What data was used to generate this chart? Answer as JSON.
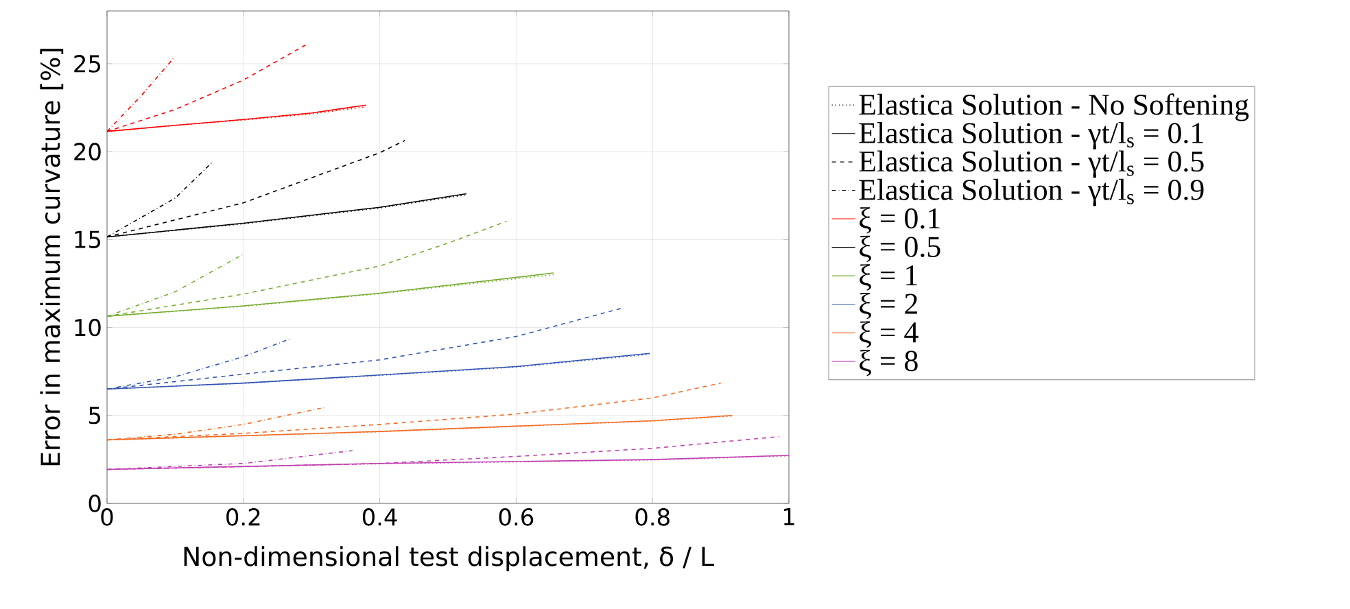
{
  "chart_data": {
    "type": "line",
    "xlabel": "Non-dimensional test displacement, δ / L",
    "ylabel": "Error in maximum curvature [%]",
    "xlim": [
      0,
      1
    ],
    "ylim": [
      0,
      28
    ],
    "xticks": [
      0,
      0.2,
      0.4,
      0.6,
      0.8,
      1
    ],
    "yticks": [
      0,
      5,
      10,
      15,
      20,
      25
    ],
    "grid": true,
    "legend": "right",
    "series": [
      {
        "color": "#ff0000",
        "line_style": "dotted",
        "x": [
          0,
          0.1,
          0.2,
          0.3,
          0.38
        ],
        "values": [
          21.15,
          21.5,
          21.8,
          22.15,
          22.55
        ]
      },
      {
        "color": "#ff0000",
        "line_style": "solid",
        "x": [
          0,
          0.1,
          0.2,
          0.3,
          0.38
        ],
        "values": [
          21.15,
          21.5,
          21.83,
          22.2,
          22.65
        ]
      },
      {
        "color": "#ff0000",
        "line_style": "dashed",
        "x": [
          0,
          0.1,
          0.2,
          0.291
        ],
        "values": [
          21.15,
          22.4,
          24.07,
          26.06
        ]
      },
      {
        "color": "#ff0000",
        "line_style": "dashdot",
        "x": [
          0,
          0.05,
          0.097
        ],
        "values": [
          21.15,
          23.17,
          25.29
        ]
      },
      {
        "color": "#000000",
        "line_style": "dotted",
        "x": [
          0,
          0.2,
          0.4,
          0.527
        ],
        "values": [
          15.15,
          15.9,
          16.8,
          17.55
        ]
      },
      {
        "color": "#000000",
        "line_style": "solid",
        "x": [
          0,
          0.2,
          0.4,
          0.527
        ],
        "values": [
          15.15,
          15.93,
          16.84,
          17.61
        ]
      },
      {
        "color": "#000000",
        "line_style": "dashed",
        "x": [
          0,
          0.2,
          0.4,
          0.437
        ],
        "values": [
          15.15,
          17.09,
          19.94,
          20.64
        ]
      },
      {
        "color": "#000000",
        "line_style": "dashdot",
        "x": [
          0,
          0.1,
          0.155
        ],
        "values": [
          15.15,
          17.36,
          19.42
        ]
      },
      {
        "color": "#77ac30",
        "line_style": "dotted",
        "x": [
          0,
          0.2,
          0.4,
          0.655
        ],
        "values": [
          10.64,
          11.2,
          11.92,
          13.0
        ]
      },
      {
        "color": "#77ac30",
        "line_style": "solid",
        "x": [
          0,
          0.2,
          0.4,
          0.655
        ],
        "values": [
          10.64,
          11.23,
          11.95,
          13.1
        ]
      },
      {
        "color": "#77ac30",
        "line_style": "dashed",
        "x": [
          0,
          0.2,
          0.4,
          0.5,
          0.586
        ],
        "values": [
          10.64,
          11.9,
          13.5,
          14.8,
          16.04
        ]
      },
      {
        "color": "#77ac30",
        "line_style": "dashdot",
        "x": [
          0,
          0.1,
          0.2
        ],
        "values": [
          10.64,
          12.03,
          14.17
        ]
      },
      {
        "color": "#3355b0",
        "line_style": "dotted",
        "x": [
          0,
          0.2,
          0.4,
          0.6,
          0.796
        ],
        "values": [
          6.5,
          6.83,
          7.28,
          7.75,
          8.48
        ]
      },
      {
        "color": "#3355b0",
        "line_style": "solid",
        "x": [
          0,
          0.2,
          0.4,
          0.6,
          0.796
        ],
        "values": [
          6.5,
          6.84,
          7.3,
          7.78,
          8.53
        ]
      },
      {
        "color": "#3355b0",
        "line_style": "dashed",
        "x": [
          0,
          0.2,
          0.4,
          0.6,
          0.755
        ],
        "values": [
          6.5,
          7.35,
          8.16,
          9.49,
          11.1
        ]
      },
      {
        "color": "#3355b0",
        "line_style": "dashdot",
        "x": [
          0,
          0.1,
          0.2,
          0.269
        ],
        "values": [
          6.5,
          7.2,
          8.34,
          9.36
        ]
      },
      {
        "color": "#f26b21",
        "line_style": "dotted",
        "x": [
          0,
          0.4,
          0.8,
          0.917
        ],
        "values": [
          3.61,
          4.07,
          4.68,
          4.97
        ]
      },
      {
        "color": "#f26b21",
        "line_style": "solid",
        "x": [
          0,
          0.4,
          0.8,
          0.917
        ],
        "values": [
          3.61,
          4.09,
          4.7,
          5.0
        ]
      },
      {
        "color": "#f26b21",
        "line_style": "dashed",
        "x": [
          0,
          0.2,
          0.4,
          0.6,
          0.8,
          0.9
        ],
        "values": [
          3.61,
          3.98,
          4.49,
          5.08,
          6.0,
          6.84
        ]
      },
      {
        "color": "#f26b21",
        "line_style": "dashdot",
        "x": [
          0,
          0.1,
          0.2,
          0.322
        ],
        "values": [
          3.61,
          3.93,
          4.49,
          5.48
        ]
      },
      {
        "color": "#c040b0",
        "line_style": "dotted",
        "x": [
          0,
          0.4,
          0.8,
          1
        ],
        "values": [
          1.93,
          2.25,
          2.47,
          2.7
        ]
      },
      {
        "color": "#c040b0",
        "line_style": "solid",
        "x": [
          0,
          0.4,
          0.8,
          1
        ],
        "values": [
          1.93,
          2.27,
          2.49,
          2.73
        ]
      },
      {
        "color": "#c040b0",
        "line_style": "dashed",
        "x": [
          0,
          0.2,
          0.4,
          0.6,
          0.8,
          0.986
        ],
        "values": [
          1.93,
          2.09,
          2.27,
          2.67,
          3.13,
          3.8
        ]
      },
      {
        "color": "#c040b0",
        "line_style": "dashdot",
        "x": [
          0,
          0.2,
          0.36
        ],
        "values": [
          1.93,
          2.27,
          3.0
        ]
      },
      {
        "name": "Elastica Solution - No Softening",
        "color": "#000000",
        "line_style": "dotted"
      },
      {
        "name": "Elastica Solution - γt/l$_{s}$ = 0.1",
        "color": "#000000",
        "line_style": "solid"
      },
      {
        "name": "Elastica Solution - γt/l$_{s}$ = 0.5",
        "color": "#000000",
        "line_style": "dashed"
      },
      {
        "name": "Elastica Solution - γt/l$_{s}$ = 0.9",
        "color": "#000000",
        "line_style": "dashdot"
      },
      {
        "name": "ξ = 0.1",
        "color": "#ff0000",
        "line_style": "solid"
      },
      {
        "name": "ξ = 0.5",
        "color": "#000000",
        "line_style": "solid"
      },
      {
        "name": "ξ = 1",
        "color": "#77ac30",
        "line_style": "solid"
      },
      {
        "name": "ξ = 2",
        "color": "#3355b0",
        "line_style": "solid"
      },
      {
        "name": "ξ = 4",
        "color": "#f26b21",
        "line_style": "solid"
      },
      {
        "name": "ξ = 8",
        "color": "#c040b0",
        "line_style": "solid"
      }
    ]
  }
}
